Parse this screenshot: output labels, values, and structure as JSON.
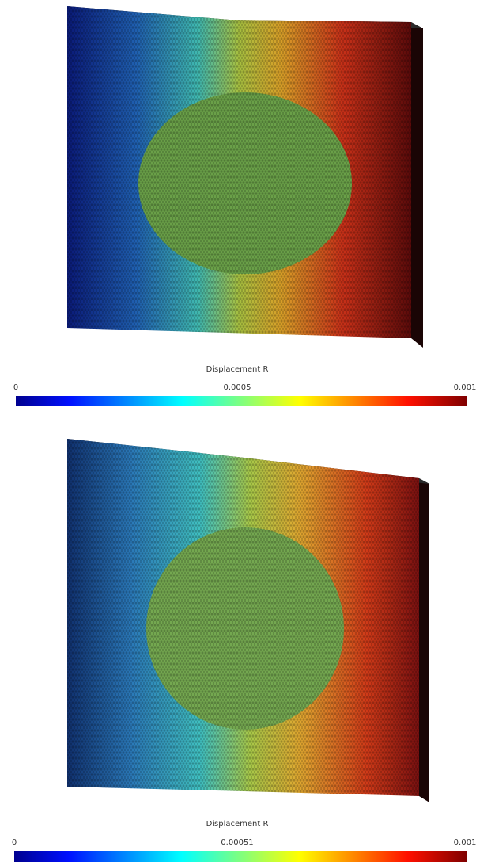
{
  "panels": [
    {
      "colorbar": {
        "title": "Displacement R",
        "ticks": [
          "0",
          "0.0005",
          "0.001"
        ]
      }
    },
    {
      "colorbar": {
        "title": "Displacement R",
        "ticks": [
          "0",
          "0.00051",
          "0.001"
        ]
      }
    }
  ]
}
